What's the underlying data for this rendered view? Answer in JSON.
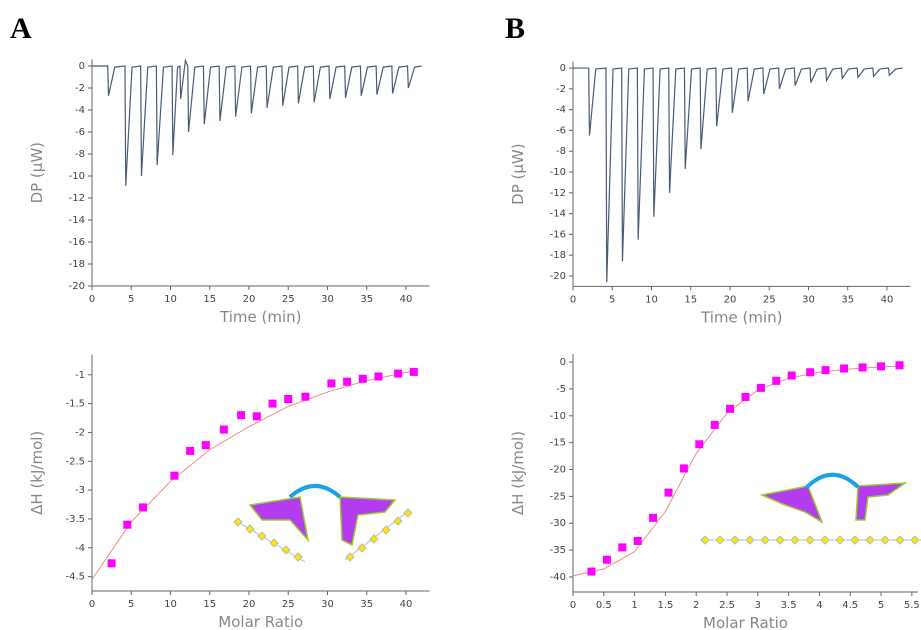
{
  "panels": [
    "A",
    "B"
  ],
  "chart_data": [
    {
      "type": "line",
      "xlabel": "Time (min)",
      "ylabel": "DP (μW)",
      "xlim": [
        0,
        43
      ],
      "ylim": [
        -20,
        0.6
      ],
      "xticks": [
        0,
        5,
        10,
        15,
        20,
        25,
        30,
        35,
        40
      ],
      "yticks": [
        0,
        -2,
        -4,
        -6,
        -8,
        -10,
        -12,
        -14,
        -16,
        -18,
        -20
      ],
      "series": [
        {
          "color": "#4a5a78",
          "x": [
            0,
            2.0,
            2.1,
            2.9,
            4.2,
            4.3,
            5.1,
            6.2,
            6.3,
            7.1,
            8.2,
            8.3,
            9.1,
            10.2,
            10.3,
            10.9,
            11.2,
            11.3,
            11.9,
            12.2,
            12.3,
            13.1,
            14.2,
            14.3,
            15.1,
            16.2,
            16.3,
            17.1,
            18.2,
            18.3,
            19.1,
            20.2,
            20.3,
            21.1,
            22.2,
            22.3,
            23.1,
            24.2,
            24.3,
            25.1,
            26.2,
            26.3,
            27.1,
            28.2,
            28.3,
            29.1,
            30.2,
            30.3,
            31.1,
            32.2,
            32.3,
            33.1,
            34.2,
            34.3,
            35.1,
            36.2,
            36.3,
            37.1,
            38.2,
            38.3,
            39.1,
            40.2,
            40.3,
            41.1,
            42
          ],
          "values": [
            0,
            0,
            -2.7,
            -0.1,
            0,
            -10.9,
            -0.1,
            0,
            -10.0,
            -0.1,
            0,
            -9.0,
            -0.1,
            0,
            -8.1,
            -0.1,
            0,
            -3.0,
            0.5,
            0,
            -6.0,
            -0.1,
            0,
            -5.3,
            -0.1,
            0,
            -5.0,
            -0.1,
            0,
            -4.6,
            -0.1,
            0,
            -4.3,
            -0.1,
            0,
            -3.8,
            -0.1,
            0,
            -3.6,
            -0.1,
            0,
            -3.4,
            -0.1,
            0,
            -3.3,
            -0.1,
            0,
            -3.0,
            -0.1,
            0,
            -2.9,
            -0.1,
            0,
            -2.7,
            -0.1,
            0,
            -2.6,
            -0.1,
            0,
            -2.5,
            -0.1,
            0,
            -2.0,
            -0.1,
            0
          ]
        }
      ]
    },
    {
      "type": "line",
      "xlabel": "Time (min)",
      "ylabel": "DP (μW)",
      "xlim": [
        0,
        43
      ],
      "ylim": [
        -21,
        0.6
      ],
      "xticks": [
        0,
        5,
        10,
        15,
        20,
        25,
        30,
        35,
        40
      ],
      "yticks": [
        0,
        -2,
        -4,
        -6,
        -8,
        -10,
        -12,
        -14,
        -16,
        -18,
        -20
      ],
      "series": [
        {
          "color": "#4a5a78",
          "x": [
            0,
            2.0,
            2.1,
            2.9,
            4.2,
            4.3,
            5.1,
            6.2,
            6.3,
            7.1,
            8.2,
            8.3,
            9.1,
            10.2,
            10.3,
            11.1,
            12.2,
            12.3,
            13.1,
            14.2,
            14.3,
            15.1,
            16.2,
            16.3,
            17.1,
            18.2,
            18.3,
            19.1,
            20.2,
            20.3,
            21.1,
            22.2,
            22.3,
            23.1,
            24.2,
            24.3,
            25.1,
            26.2,
            26.3,
            27.1,
            28.2,
            28.3,
            29.1,
            30.2,
            30.3,
            31.1,
            32.2,
            32.3,
            33.1,
            34.2,
            34.3,
            35.1,
            36.2,
            36.3,
            37.1,
            38.2,
            38.3,
            39.1,
            40.2,
            40.3,
            41.1,
            42
          ],
          "values": [
            0,
            0,
            -6.5,
            -0.1,
            0,
            -20.6,
            -0.1,
            0,
            -18.6,
            -0.1,
            0,
            -16.5,
            -0.1,
            0,
            -14.3,
            -0.1,
            0,
            -12.0,
            -0.1,
            0,
            -9.7,
            -0.1,
            0,
            -7.8,
            -0.1,
            0,
            -5.6,
            -0.1,
            0,
            -4.3,
            -0.1,
            0,
            -3.2,
            -0.1,
            0,
            -2.5,
            -0.1,
            0,
            -2.0,
            -0.1,
            0,
            -1.7,
            -0.1,
            0,
            -1.4,
            -0.1,
            0,
            -1.2,
            -0.1,
            0,
            -1.0,
            -0.1,
            0,
            -0.9,
            -0.1,
            0,
            -0.8,
            -0.1,
            0,
            -0.7,
            -0.1,
            0
          ]
        }
      ]
    },
    {
      "type": "scatter",
      "xlabel": "Molar Ratio",
      "ylabel": "ΔH (kJ/mol)",
      "xlim": [
        0,
        43
      ],
      "ylim": [
        -4.75,
        -0.65
      ],
      "xticks": [
        0,
        5,
        10,
        15,
        20,
        25,
        30,
        35,
        40
      ],
      "yticks": [
        -1,
        -1.5,
        -2,
        -2.5,
        -3,
        -3.5,
        -4,
        -4.5
      ],
      "series": [
        {
          "kind": "line",
          "color": "#f08a8a",
          "x": [
            0,
            5,
            10,
            15,
            20,
            25,
            30,
            35,
            41.5
          ],
          "values": [
            -4.55,
            -3.55,
            -2.85,
            -2.3,
            -1.9,
            -1.55,
            -1.3,
            -1.1,
            -0.92
          ]
        },
        {
          "kind": "markers",
          "color": "#ff00ff",
          "x": [
            2.5,
            4.5,
            6.5,
            10.5,
            12.5,
            14.5,
            16.8,
            19,
            21,
            23,
            25,
            27.2,
            30.5,
            32.5,
            34.5,
            36.5,
            39,
            41
          ],
          "values": [
            -4.27,
            -3.6,
            -3.3,
            -2.75,
            -2.32,
            -2.22,
            -1.95,
            -1.7,
            -1.72,
            -1.5,
            -1.42,
            -1.38,
            -1.15,
            -1.12,
            -1.07,
            -1.03,
            -0.98,
            -0.95
          ]
        }
      ]
    },
    {
      "type": "scatter",
      "xlabel": "Molar Ratio",
      "ylabel": "ΔH (kJ/mol)",
      "xlim": [
        0,
        5.6
      ],
      "ylim": [
        -42.8,
        1.5
      ],
      "xticks": [
        0,
        0.5,
        1,
        1.5,
        2,
        2.5,
        3,
        3.5,
        4,
        4.5,
        5,
        5.5
      ],
      "yticks": [
        0,
        -5,
        -10,
        -15,
        -20,
        -25,
        -30,
        -35,
        -40
      ],
      "series": [
        {
          "kind": "line",
          "color": "#f08a8a",
          "x": [
            0,
            0.5,
            1,
            1.5,
            2,
            2.5,
            3,
            3.5,
            4,
            4.5,
            5,
            5.4
          ],
          "values": [
            -39.8,
            -38.5,
            -35.3,
            -27.8,
            -17,
            -9.5,
            -5.2,
            -3,
            -1.9,
            -1.3,
            -0.9,
            -0.7
          ]
        },
        {
          "kind": "markers",
          "color": "#ff00ff",
          "x": [
            0.3,
            0.55,
            0.8,
            1.05,
            1.3,
            1.55,
            1.8,
            2.05,
            2.3,
            2.55,
            2.8,
            3.05,
            3.3,
            3.55,
            3.85,
            4.1,
            4.4,
            4.7,
            5.0,
            5.3
          ],
          "values": [
            -39,
            -36.8,
            -34.5,
            -33.3,
            -29,
            -24.3,
            -19.8,
            -15.3,
            -11.7,
            -8.7,
            -6.5,
            -4.8,
            -3.5,
            -2.5,
            -1.9,
            -1.5,
            -1.2,
            -1.0,
            -0.8,
            -0.6
          ]
        }
      ]
    }
  ]
}
